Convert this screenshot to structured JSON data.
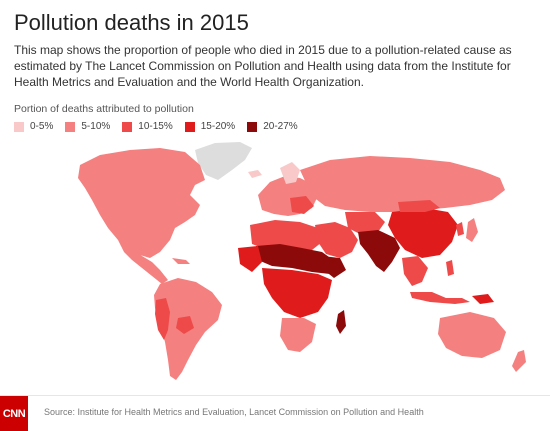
{
  "header": {
    "title": "Pollution deaths in 2015",
    "description": "This map shows the proportion of people who died in 2015 due to a pollution-related cause as estimated by The Lancet Commission on Pollution and Health using data from the Institute for Health Metrics and Evaluation and the World Health Organization."
  },
  "legend": {
    "title": "Portion of deaths attributed to pollution",
    "items": [
      {
        "label": "0-5%",
        "color": "#f9c9c9"
      },
      {
        "label": "5-10%",
        "color": "#f48080"
      },
      {
        "label": "10-15%",
        "color": "#ee4a4a"
      },
      {
        "label": "15-20%",
        "color": "#e01b1b"
      },
      {
        "label": "20-27%",
        "color": "#8c0a0a"
      }
    ],
    "no_data_color": "#dddddd"
  },
  "footer": {
    "logo": "CNN",
    "source": "Source: Institute for Health Metrics and Evaluation, Lancet Commission on Pollution and Health"
  }
}
